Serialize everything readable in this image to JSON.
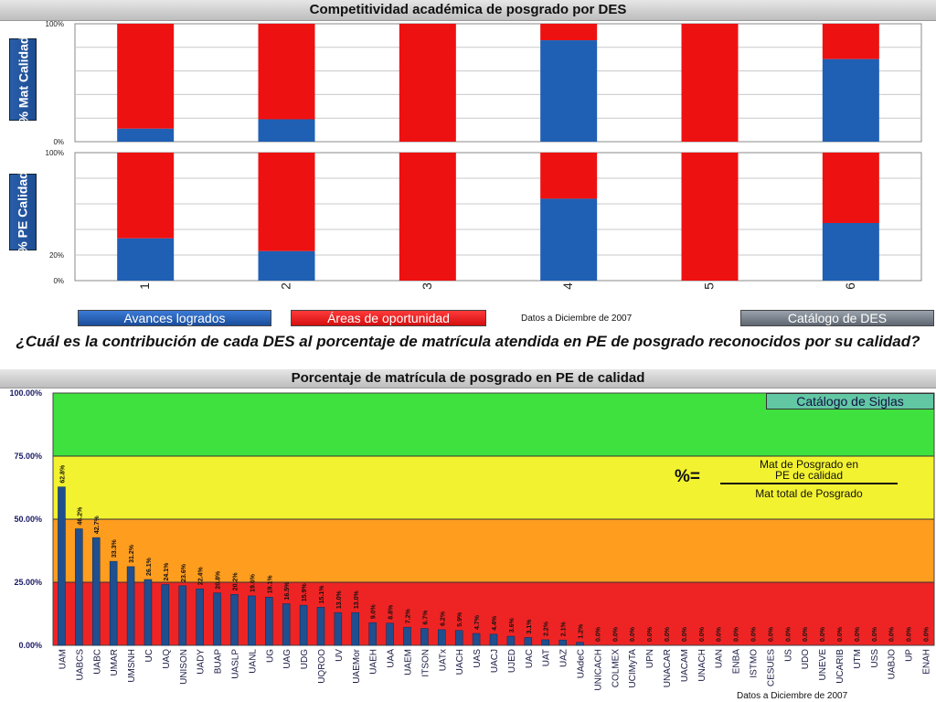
{
  "top": {
    "title": "Competitividad académica de posgrado por DES",
    "panel1_label": "% Mat Calidad",
    "panel2_label": "% PE Calidad",
    "legend": {
      "achieved": "Avances logrados",
      "opportunity": "Áreas de oportunidad",
      "date": "Datos a Diciembre de 2007",
      "catalog": "Catálogo de DES"
    },
    "colors": {
      "achieved": "#1f5fb4",
      "opportunity": "#ee1111"
    }
  },
  "question": "¿Cuál es la contribución de cada DES al porcentaje de matrícula atendida en PE  de posgrado reconocidos por su calidad?",
  "bottom": {
    "title": "Porcentaje de matrícula de posgrado en PE de calidad",
    "catalog": "Catálogo de Siglas",
    "formula": {
      "lhs": "%=",
      "numerator_line1": "Mat de Posgrado en",
      "numerator_line2": "PE de calidad",
      "denominator": "Mat total de Posgrado"
    },
    "date": "Datos a Diciembre de 2007",
    "bands": [
      {
        "from": 75,
        "to": 100,
        "color": "#3ee13e"
      },
      {
        "from": 50,
        "to": 75,
        "color": "#f2f230"
      },
      {
        "from": 25,
        "to": 50,
        "color": "#ff9d1f"
      },
      {
        "from": 0,
        "to": 25,
        "color": "#ee2424"
      }
    ]
  },
  "chart_data": [
    {
      "type": "bar",
      "stacked": true,
      "categories": [
        "1",
        "2",
        "3",
        "4",
        "5",
        "6"
      ],
      "series": [
        {
          "name": "Avances logrados",
          "values": [
            11,
            19,
            0,
            86,
            0,
            70
          ]
        },
        {
          "name": "Áreas de oportunidad",
          "values": [
            89,
            81,
            100,
            14,
            100,
            30
          ]
        }
      ],
      "ylabel": "% Mat Calidad",
      "ylim": [
        0,
        100
      ],
      "yticks": [
        "100%",
        "0%"
      ]
    },
    {
      "type": "bar",
      "stacked": true,
      "categories": [
        "1",
        "2",
        "3",
        "4",
        "5",
        "6"
      ],
      "series": [
        {
          "name": "Avances logrados",
          "values": [
            33,
            23,
            0,
            64,
            0,
            45
          ]
        },
        {
          "name": "Áreas de oportunidad",
          "values": [
            67,
            77,
            100,
            36,
            100,
            55
          ]
        }
      ],
      "ylabel": "% PE Calidad",
      "ylim": [
        0,
        100
      ],
      "yticks": [
        "100%",
        "20%",
        "0%"
      ]
    },
    {
      "type": "bar",
      "title": "Porcentaje de matrícula de posgrado en PE de calidad",
      "categories": [
        "UAM",
        "UABCS",
        "UABC",
        "UMAR",
        "UMSNH",
        "UC",
        "UAQ",
        "UNISON",
        "UADY",
        "BUAP",
        "UASLP",
        "UANL",
        "UG",
        "UAG",
        "UDG",
        "UQROO",
        "UV",
        "UAEMor",
        "UAEH",
        "UAA",
        "UAEM",
        "ITSON",
        "UATx",
        "UACH",
        "UAS",
        "UACJ",
        "UJED",
        "UAC",
        "UAT",
        "UAZ",
        "UAdeC",
        "UNICACH",
        "COLMEX",
        "UCIMyTA",
        "UPN",
        "UNACAR",
        "UACAM",
        "UNACH",
        "UAN",
        "ENBA",
        "ISTMO",
        "CESUES",
        "US",
        "UDO",
        "UNEVE",
        "UCARIB",
        "UTM",
        "USS",
        "UABJO",
        "UP",
        "ENAH"
      ],
      "values": [
        62.8,
        46.2,
        42.7,
        33.3,
        31.2,
        26.1,
        24.1,
        23.6,
        22.4,
        20.8,
        20.2,
        19.6,
        19.1,
        16.5,
        15.9,
        15.1,
        13.0,
        13.0,
        9.0,
        8.8,
        7.2,
        6.7,
        6.2,
        5.9,
        4.7,
        4.4,
        3.6,
        3.1,
        2.2,
        2.1,
        1.2,
        0.0,
        0.0,
        0.0,
        0.0,
        0.0,
        0.0,
        0.0,
        0.0,
        0.0,
        0.0,
        0.0,
        0.0,
        0.0,
        0.0,
        0.0,
        0.0,
        0.0,
        0.0,
        0.0,
        0.0
      ],
      "labels": [
        "62.8%",
        "46.2%",
        "42.7%",
        "33.3%",
        "31.2%",
        "26.1%",
        "24.1%",
        "23.6%",
        "22.4%",
        "20.8%",
        "20.2%",
        "19.6%",
        "19.1%",
        "16.5%",
        "15.9%",
        "15.1%",
        "13.0%",
        "13.0%",
        "9.0%",
        "8.8%",
        "7.2%",
        "6.7%",
        "6.2%",
        "5.9%",
        "4.7%",
        "4.4%",
        "3.6%",
        "3.1%",
        "2.2%",
        "2.1%",
        "1.2%",
        "0.0%",
        "0.0%",
        "0.0%",
        "0.0%",
        "0.0%",
        "0.0%",
        "0.0%",
        "0.0%",
        "0.0%",
        "0.0%",
        "0.0%",
        "0.0%",
        "0.0%",
        "0.0%",
        "0.0%",
        "0.0%",
        "0.0%",
        "0.0%",
        "0.0%",
        "0.0%"
      ],
      "ylim": [
        0,
        100
      ],
      "yticks": [
        "0.00%",
        "25.00%",
        "50.00%",
        "75.00%",
        "100.00%"
      ],
      "bar_color": "#1f4f8f"
    }
  ]
}
